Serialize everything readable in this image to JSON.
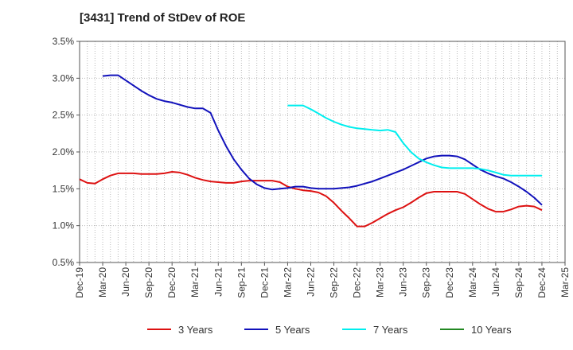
{
  "chart_data": {
    "type": "line",
    "title": "[3431]  Trend of StDev of ROE",
    "xlabel": "",
    "ylabel": "",
    "x": [
      "Dec-19",
      "Mar-20",
      "Jun-20",
      "Sep-20",
      "Dec-20",
      "Mar-21",
      "Jun-21",
      "Sep-21",
      "Dec-21",
      "Mar-22",
      "Jun-22",
      "Sep-22",
      "Dec-22",
      "Mar-23",
      "Jun-23",
      "Sep-23",
      "Dec-23",
      "Mar-24",
      "Jun-24",
      "Sep-24",
      "Dec-24",
      "Mar-25"
    ],
    "y_ticks": [
      "0.5%",
      "1.0%",
      "1.5%",
      "2.0%",
      "2.5%",
      "3.0%",
      "3.5%"
    ],
    "ylim": [
      0.5,
      3.5
    ],
    "grid": true,
    "legend_position": "bottom",
    "series": [
      {
        "name": "3 Years",
        "color": "#dd1111",
        "points": [
          [
            "Dec-19",
            1.63
          ],
          [
            "Jan-20",
            1.58
          ],
          [
            "Feb-20",
            1.57
          ],
          [
            "Mar-20",
            1.63
          ],
          [
            "Apr-20",
            1.68
          ],
          [
            "May-20",
            1.71
          ],
          [
            "Jun-20",
            1.71
          ],
          [
            "Jul-20",
            1.71
          ],
          [
            "Aug-20",
            1.7
          ],
          [
            "Sep-20",
            1.7
          ],
          [
            "Oct-20",
            1.7
          ],
          [
            "Nov-20",
            1.71
          ],
          [
            "Dec-20",
            1.73
          ],
          [
            "Jan-21",
            1.72
          ],
          [
            "Feb-21",
            1.69
          ],
          [
            "Mar-21",
            1.65
          ],
          [
            "Apr-21",
            1.62
          ],
          [
            "May-21",
            1.6
          ],
          [
            "Jun-21",
            1.59
          ],
          [
            "Jul-21",
            1.58
          ],
          [
            "Aug-21",
            1.58
          ],
          [
            "Sep-21",
            1.6
          ],
          [
            "Oct-21",
            1.61
          ],
          [
            "Nov-21",
            1.61
          ],
          [
            "Dec-21",
            1.61
          ],
          [
            "Jan-22",
            1.61
          ],
          [
            "Feb-22",
            1.59
          ],
          [
            "Mar-22",
            1.53
          ],
          [
            "Apr-22",
            1.5
          ],
          [
            "May-22",
            1.48
          ],
          [
            "Jun-22",
            1.47
          ],
          [
            "Jul-22",
            1.45
          ],
          [
            "Aug-22",
            1.4
          ],
          [
            "Sep-22",
            1.31
          ],
          [
            "Oct-22",
            1.2
          ],
          [
            "Nov-22",
            1.1
          ],
          [
            "Dec-22",
            0.99
          ],
          [
            "Jan-23",
            0.99
          ],
          [
            "Feb-23",
            1.04
          ],
          [
            "Mar-23",
            1.1
          ],
          [
            "Apr-23",
            1.16
          ],
          [
            "May-23",
            1.21
          ],
          [
            "Jun-23",
            1.25
          ],
          [
            "Jul-23",
            1.31
          ],
          [
            "Aug-23",
            1.38
          ],
          [
            "Sep-23",
            1.44
          ],
          [
            "Oct-23",
            1.46
          ],
          [
            "Nov-23",
            1.46
          ],
          [
            "Dec-23",
            1.46
          ],
          [
            "Jan-24",
            1.46
          ],
          [
            "Feb-24",
            1.43
          ],
          [
            "Mar-24",
            1.36
          ],
          [
            "Apr-24",
            1.29
          ],
          [
            "May-24",
            1.23
          ],
          [
            "Jun-24",
            1.19
          ],
          [
            "Jul-24",
            1.19
          ],
          [
            "Aug-24",
            1.22
          ],
          [
            "Sep-24",
            1.26
          ],
          [
            "Oct-24",
            1.27
          ],
          [
            "Nov-24",
            1.26
          ],
          [
            "Dec-24",
            1.21
          ]
        ]
      },
      {
        "name": "5 Years",
        "color": "#1111bb",
        "points": [
          [
            "Mar-20",
            3.03
          ],
          [
            "Apr-20",
            3.04
          ],
          [
            "May-20",
            3.04
          ],
          [
            "Jun-20",
            2.97
          ],
          [
            "Jul-20",
            2.9
          ],
          [
            "Aug-20",
            2.83
          ],
          [
            "Sep-20",
            2.77
          ],
          [
            "Oct-20",
            2.72
          ],
          [
            "Nov-20",
            2.69
          ],
          [
            "Dec-20",
            2.67
          ],
          [
            "Jan-21",
            2.64
          ],
          [
            "Feb-21",
            2.61
          ],
          [
            "Mar-21",
            2.59
          ],
          [
            "Apr-21",
            2.59
          ],
          [
            "May-21",
            2.53
          ],
          [
            "Jun-21",
            2.29
          ],
          [
            "Jul-21",
            2.08
          ],
          [
            "Aug-21",
            1.9
          ],
          [
            "Sep-21",
            1.76
          ],
          [
            "Oct-21",
            1.64
          ],
          [
            "Nov-21",
            1.56
          ],
          [
            "Dec-21",
            1.51
          ],
          [
            "Jan-22",
            1.49
          ],
          [
            "Feb-22",
            1.5
          ],
          [
            "Mar-22",
            1.51
          ],
          [
            "Apr-22",
            1.53
          ],
          [
            "May-22",
            1.53
          ],
          [
            "Jun-22",
            1.51
          ],
          [
            "Jul-22",
            1.5
          ],
          [
            "Aug-22",
            1.5
          ],
          [
            "Sep-22",
            1.5
          ],
          [
            "Oct-22",
            1.51
          ],
          [
            "Nov-22",
            1.52
          ],
          [
            "Dec-22",
            1.54
          ],
          [
            "Jan-23",
            1.57
          ],
          [
            "Feb-23",
            1.6
          ],
          [
            "Mar-23",
            1.64
          ],
          [
            "Apr-23",
            1.68
          ],
          [
            "May-23",
            1.72
          ],
          [
            "Jun-23",
            1.76
          ],
          [
            "Jul-23",
            1.81
          ],
          [
            "Aug-23",
            1.86
          ],
          [
            "Sep-23",
            1.91
          ],
          [
            "Oct-23",
            1.94
          ],
          [
            "Nov-23",
            1.95
          ],
          [
            "Dec-23",
            1.95
          ],
          [
            "Jan-24",
            1.94
          ],
          [
            "Feb-24",
            1.9
          ],
          [
            "Mar-24",
            1.83
          ],
          [
            "Apr-24",
            1.76
          ],
          [
            "May-24",
            1.71
          ],
          [
            "Jun-24",
            1.67
          ],
          [
            "Jul-24",
            1.64
          ],
          [
            "Aug-24",
            1.59
          ],
          [
            "Sep-24",
            1.53
          ],
          [
            "Oct-24",
            1.46
          ],
          [
            "Nov-24",
            1.38
          ],
          [
            "Dec-24",
            1.28
          ]
        ]
      },
      {
        "name": "7 Years",
        "color": "#00eeee",
        "points": [
          [
            "Mar-22",
            2.63
          ],
          [
            "Apr-22",
            2.63
          ],
          [
            "May-22",
            2.63
          ],
          [
            "Jun-22",
            2.58
          ],
          [
            "Jul-22",
            2.52
          ],
          [
            "Aug-22",
            2.46
          ],
          [
            "Sep-22",
            2.41
          ],
          [
            "Oct-22",
            2.37
          ],
          [
            "Nov-22",
            2.34
          ],
          [
            "Dec-22",
            2.32
          ],
          [
            "Jan-23",
            2.31
          ],
          [
            "Feb-23",
            2.3
          ],
          [
            "Mar-23",
            2.29
          ],
          [
            "Apr-23",
            2.3
          ],
          [
            "May-23",
            2.27
          ],
          [
            "Jun-23",
            2.12
          ],
          [
            "Jul-23",
            2.0
          ],
          [
            "Aug-23",
            1.91
          ],
          [
            "Sep-23",
            1.86
          ],
          [
            "Oct-23",
            1.82
          ],
          [
            "Nov-23",
            1.79
          ],
          [
            "Dec-23",
            1.78
          ],
          [
            "Jan-24",
            1.78
          ],
          [
            "Feb-24",
            1.78
          ],
          [
            "Mar-24",
            1.78
          ],
          [
            "Apr-24",
            1.77
          ],
          [
            "May-24",
            1.75
          ],
          [
            "Jun-24",
            1.72
          ],
          [
            "Jul-24",
            1.69
          ],
          [
            "Aug-24",
            1.68
          ],
          [
            "Sep-24",
            1.68
          ],
          [
            "Oct-24",
            1.68
          ],
          [
            "Nov-24",
            1.68
          ],
          [
            "Dec-24",
            1.68
          ]
        ]
      },
      {
        "name": "10 Years",
        "color": "#228822",
        "points": []
      }
    ]
  }
}
